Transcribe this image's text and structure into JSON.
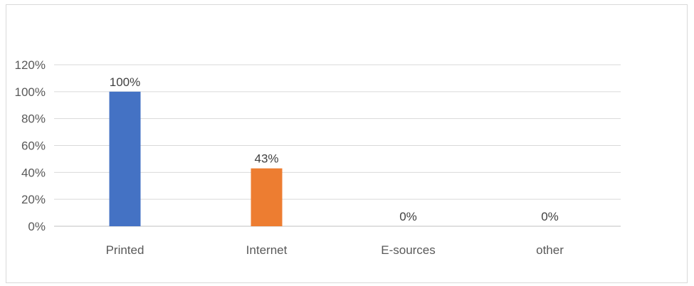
{
  "chart_data": {
    "type": "bar",
    "categories": [
      "Printed",
      "Internet",
      "E-sources",
      "other"
    ],
    "values": [
      100,
      43,
      0,
      0
    ],
    "data_labels": [
      "100%",
      "43%",
      "0%",
      "0%"
    ],
    "colors": [
      "#4472c4",
      "#ed7d31",
      "#a5a5a5",
      "#ffc000"
    ],
    "ylim": [
      0,
      120
    ],
    "yticks": [
      0,
      20,
      40,
      60,
      80,
      100,
      120
    ],
    "ytick_labels": [
      "0%",
      "20%",
      "40%",
      "60%",
      "80%",
      "100%",
      "120%"
    ],
    "gridlines": true,
    "legend": "none"
  }
}
